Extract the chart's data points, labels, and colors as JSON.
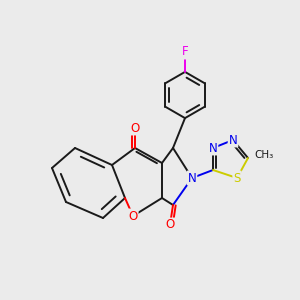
{
  "bg_color": "#ebebeb",
  "bond_color": "#1a1a1a",
  "figsize": [
    3.0,
    3.0
  ],
  "dpi": 100,
  "atom_colors": {
    "O": "#ff0000",
    "N": "#0000ee",
    "S": "#cccc00",
    "F": "#ee00ee",
    "C": "#1a1a1a"
  },
  "lw": 1.4
}
